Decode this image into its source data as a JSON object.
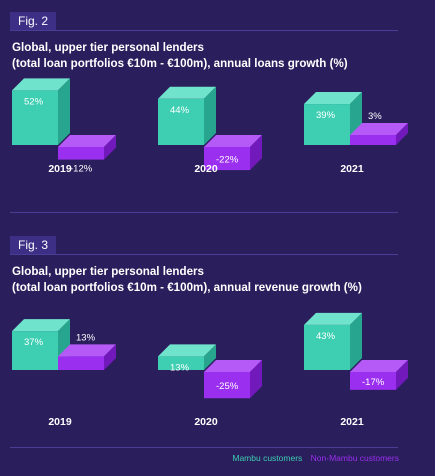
{
  "figures": [
    {
      "badge": "Fig. 2",
      "title_line1": "Global, upper tier personal lenders",
      "title_line2": "(total loan portfolios €10m - €100m), annual loans growth (%)"
    },
    {
      "badge": "Fig. 3",
      "title_line1": "Global, upper tier personal lenders",
      "title_line2": "(total loan portfolios €10m - €100m), annual revenue growth (%)"
    }
  ],
  "legend": {
    "mambu": "Mambu customers",
    "non_mambu": "Non-Mambu customers"
  },
  "colors": {
    "background": "#2a1e5c",
    "mambu_front": "#3ecfb2",
    "mambu_top": "#6fe3cb",
    "mambu_side": "#27a58e",
    "non_front": "#9b2ff0",
    "non_top": "#b55af7",
    "non_side": "#7119bb"
  },
  "chart_data": [
    {
      "type": "bar",
      "title": "Global, upper tier personal lenders (total loan portfolios €10m - €100m), annual loans growth (%)",
      "categories": [
        "2019",
        "2020",
        "2021"
      ],
      "series": [
        {
          "name": "Mambu customers",
          "values": [
            52,
            44,
            39
          ],
          "labels": [
            "52%",
            "44%",
            "39%"
          ]
        },
        {
          "name": "Non-Mambu customers",
          "values": [
            -12,
            -22,
            3
          ],
          "labels": [
            "-12%",
            "-22%",
            "3%"
          ]
        }
      ],
      "legend": "bottom-right"
    },
    {
      "type": "bar",
      "title": "Global, upper tier personal lenders (total loan portfolios €10m - €100m), annual revenue growth (%)",
      "categories": [
        "2019",
        "2020",
        "2021"
      ],
      "series": [
        {
          "name": "Mambu customers",
          "values": [
            37,
            13,
            43
          ],
          "labels": [
            "37%",
            "13%",
            "43%"
          ]
        },
        {
          "name": "Non-Mambu customers",
          "values": [
            13,
            -25,
            -17
          ],
          "labels": [
            "13%",
            "-25%",
            "-17%"
          ]
        }
      ],
      "legend": "bottom-right"
    }
  ]
}
